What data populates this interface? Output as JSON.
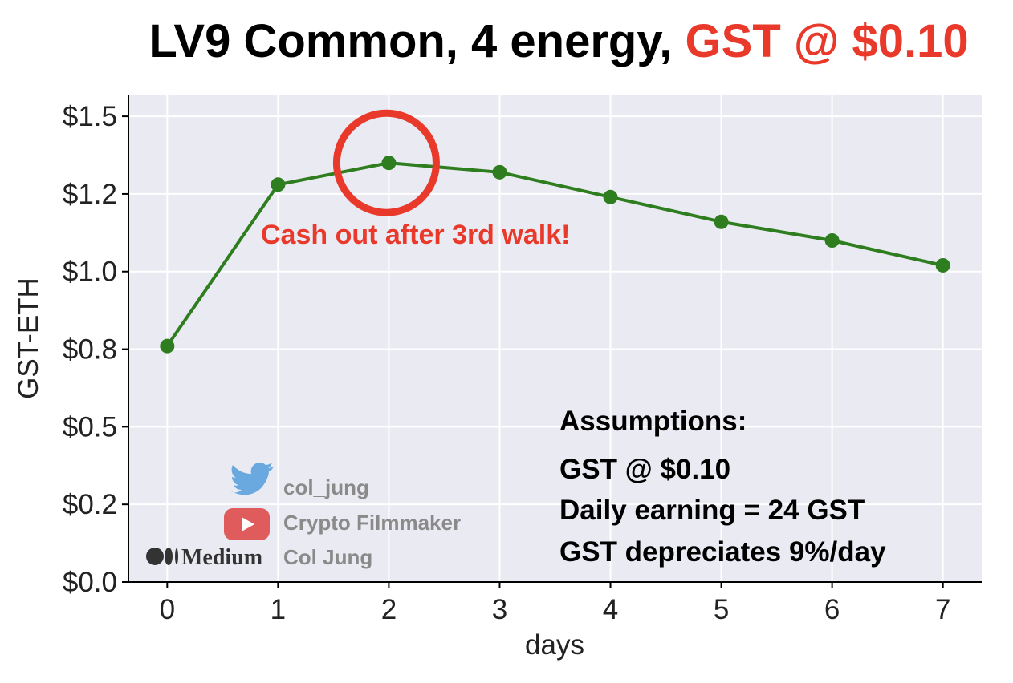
{
  "title": {
    "main": "LV9 Common, 4 energy, ",
    "highlight": "GST @ $0.10"
  },
  "colors": {
    "line": "#2e7d1f",
    "highlight": "#e8392b",
    "plot_bg": "#eaeaf2",
    "grid": "#ffffff"
  },
  "chart_data": {
    "type": "line",
    "xlabel": "days",
    "ylabel": "GST-ETH",
    "x": [
      0,
      1,
      2,
      3,
      4,
      5,
      6,
      7
    ],
    "series": [
      {
        "values": [
          0.76,
          1.28,
          1.35,
          1.32,
          1.24,
          1.16,
          1.1,
          1.02
        ]
      }
    ],
    "xlim": [
      -0.35,
      7.35
    ],
    "ylim": [
      0.0,
      1.57
    ],
    "x_ticks": [
      "0",
      "1",
      "2",
      "3",
      "4",
      "5",
      "6",
      "7"
    ],
    "y_tick_values": [
      0.0,
      0.25,
      0.5,
      0.75,
      1.0,
      1.25,
      1.5
    ],
    "y_tick_labels": [
      "$0.0",
      "$0.2",
      "$0.5",
      "$0.8",
      "$1.0",
      "$1.2",
      "$1.5"
    ],
    "grid": true,
    "highlighted_point": 2,
    "annotation": "Cash out after 3rd walk!",
    "assumptions": {
      "heading": "Assumptions:",
      "lines": [
        "GST @ $0.10",
        "Daily earning = 24 GST",
        "GST depreciates 9%/day"
      ]
    }
  },
  "watermark": {
    "twitter": {
      "icon": "twitter-bird-icon",
      "text": "col_jung"
    },
    "youtube": {
      "icon": "youtube-play-icon",
      "text": "Crypto Filmmaker"
    },
    "medium": {
      "icon": "medium-logo-icon",
      "wordmark": "Medium",
      "text": "Col Jung"
    }
  }
}
